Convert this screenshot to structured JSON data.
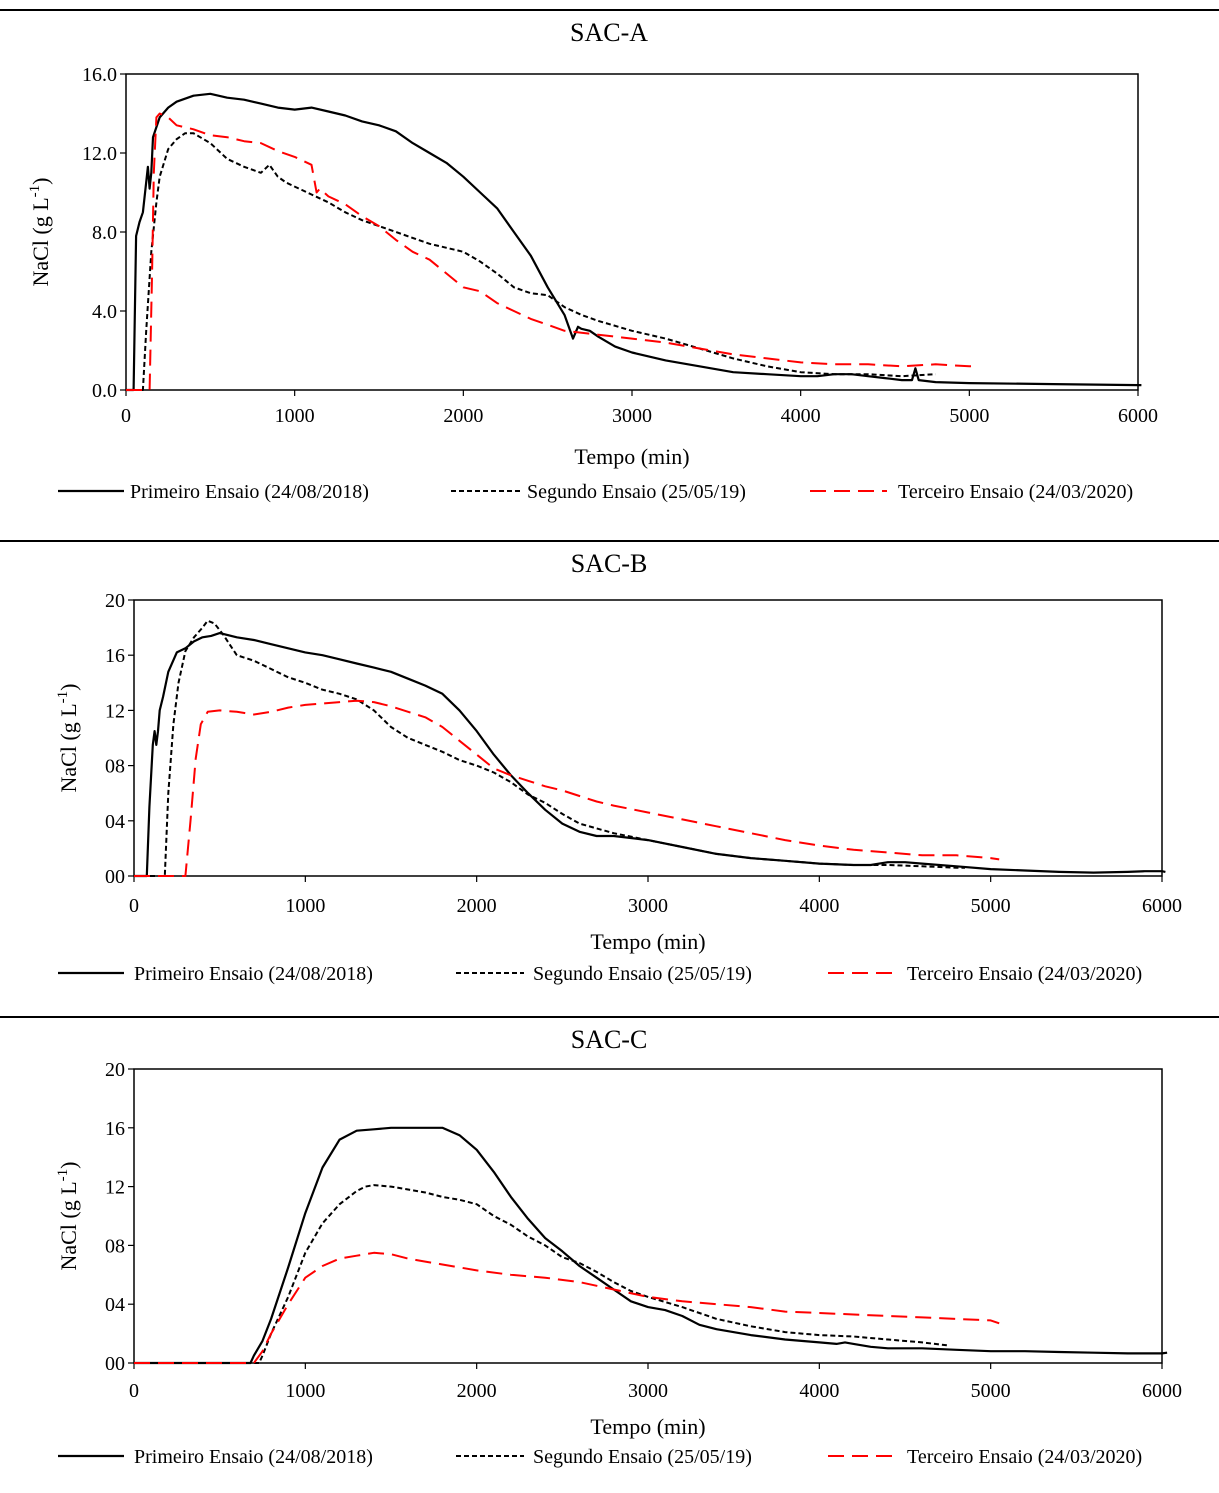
{
  "chart_data": [
    {
      "type": "line",
      "title": "SAC-A",
      "xlabel": "Tempo (min)",
      "ylabel": "NaCl (g L-1)",
      "ylabel_main": "NaCl (g L",
      "ylabel_sup": "-1",
      "ylabel_close": ")",
      "xlim": [
        0,
        6000
      ],
      "ylim": [
        0,
        16
      ],
      "xticks": [
        "0",
        "1000",
        "2000",
        "3000",
        "4000",
        "5000",
        "6000"
      ],
      "yticks": [
        "0.0",
        "4.0",
        "8.0",
        "12.0",
        "16.0"
      ],
      "grid": false,
      "legend_position": "bottom",
      "series": [
        {
          "name": "Primeiro Ensaio (24/08/2018)",
          "color": "#000000",
          "style": "solid",
          "x": [
            0,
            45,
            60,
            80,
            100,
            130,
            140,
            150,
            160,
            200,
            250,
            300,
            400,
            500,
            600,
            700,
            800,
            900,
            1000,
            1100,
            1200,
            1300,
            1400,
            1500,
            1600,
            1700,
            1800,
            1900,
            2000,
            2100,
            2200,
            2300,
            2400,
            2500,
            2600,
            2650,
            2680,
            2700,
            2750,
            2800,
            2900,
            3000,
            3200,
            3400,
            3600,
            3800,
            4000,
            4100,
            4200,
            4300,
            4400,
            4500,
            4600,
            4660,
            4680,
            4700,
            4800,
            5000,
            5500,
            6000,
            6020
          ],
          "y": [
            0,
            0,
            7.8,
            8.5,
            9,
            11.3,
            10.2,
            11,
            12.8,
            13.8,
            14.3,
            14.6,
            14.9,
            15,
            14.8,
            14.7,
            14.5,
            14.3,
            14.2,
            14.3,
            14.1,
            13.9,
            13.6,
            13.4,
            13.1,
            12.5,
            12,
            11.5,
            10.8,
            10,
            9.2,
            8,
            6.8,
            5.2,
            3.8,
            2.6,
            3.2,
            3.1,
            3.0,
            2.7,
            2.2,
            1.9,
            1.5,
            1.2,
            0.9,
            0.8,
            0.7,
            0.7,
            0.8,
            0.8,
            0.7,
            0.6,
            0.5,
            0.5,
            1.1,
            0.5,
            0.4,
            0.35,
            0.3,
            0.25,
            0.25
          ]
        },
        {
          "name": "Segundo Ensaio (25/05/19)",
          "color": "#000000",
          "style": "dash",
          "x": [
            0,
            100,
            120,
            150,
            180,
            200,
            250,
            300,
            350,
            400,
            500,
            600,
            700,
            800,
            850,
            900,
            950,
            1000,
            1100,
            1200,
            1300,
            1400,
            1500,
            1600,
            1700,
            1800,
            1900,
            2000,
            2100,
            2200,
            2300,
            2400,
            2500,
            2600,
            2700,
            2800,
            3000,
            3200,
            3400,
            3600,
            3800,
            4000,
            4200,
            4400,
            4600,
            4800
          ],
          "y": [
            0,
            0,
            3,
            7,
            9.5,
            10.8,
            12.2,
            12.7,
            13.0,
            13.0,
            12.5,
            11.7,
            11.3,
            11.0,
            11.4,
            10.8,
            10.5,
            10.3,
            9.9,
            9.5,
            9.0,
            8.6,
            8.3,
            8.0,
            7.7,
            7.4,
            7.2,
            7.0,
            6.5,
            5.9,
            5.2,
            4.9,
            4.8,
            4.2,
            3.8,
            3.5,
            3.0,
            2.6,
            2.1,
            1.6,
            1.2,
            0.9,
            0.8,
            0.8,
            0.7,
            0.8
          ]
        },
        {
          "name": "Terceiro Ensaio (24/03/2020)",
          "color": "#ff0000",
          "style": "longdash",
          "x": [
            0,
            140,
            155,
            165,
            180,
            200,
            250,
            300,
            400,
            500,
            600,
            700,
            800,
            900,
            1000,
            1100,
            1130,
            1150,
            1200,
            1300,
            1400,
            1500,
            1600,
            1700,
            1800,
            1900,
            2000,
            2100,
            2200,
            2300,
            2400,
            2500,
            2600,
            2700,
            2800,
            3000,
            3200,
            3400,
            3600,
            3800,
            4000,
            4200,
            4400,
            4600,
            4800,
            5000,
            5050
          ],
          "y": [
            0,
            0,
            6,
            11,
            13.8,
            14.0,
            13.8,
            13.4,
            13.2,
            12.9,
            12.8,
            12.6,
            12.5,
            12.1,
            11.8,
            11.4,
            10.0,
            10.2,
            9.8,
            9.4,
            8.8,
            8.3,
            7.6,
            7.0,
            6.6,
            5.9,
            5.2,
            5.0,
            4.4,
            4.0,
            3.6,
            3.3,
            3.0,
            2.9,
            2.8,
            2.6,
            2.4,
            2.1,
            1.8,
            1.6,
            1.4,
            1.3,
            1.3,
            1.2,
            1.3,
            1.2,
            1.2
          ]
        }
      ]
    },
    {
      "type": "line",
      "title": "SAC-B",
      "xlabel": "Tempo (min)",
      "ylabel": "NaCl (g L-1)",
      "ylabel_main": "NaCl (g L",
      "ylabel_sup": "-1",
      "ylabel_close": ")",
      "xlim": [
        0,
        6000
      ],
      "ylim": [
        0,
        20
      ],
      "xticks": [
        "0",
        "1000",
        "2000",
        "3000",
        "4000",
        "5000",
        "6000"
      ],
      "yticks": [
        "00",
        "04",
        "08",
        "12",
        "16",
        "20"
      ],
      "grid": false,
      "legend_position": "bottom",
      "series": [
        {
          "name": "Primeiro Ensaio (24/08/2018)",
          "color": "#000000",
          "style": "solid",
          "x": [
            0,
            75,
            90,
            110,
            120,
            130,
            140,
            150,
            170,
            200,
            250,
            300,
            350,
            400,
            450,
            500,
            600,
            700,
            800,
            900,
            1000,
            1100,
            1200,
            1300,
            1400,
            1500,
            1600,
            1700,
            1800,
            1900,
            2000,
            2100,
            2200,
            2300,
            2400,
            2500,
            2600,
            2700,
            2800,
            3000,
            3200,
            3400,
            3600,
            3800,
            4000,
            4200,
            4300,
            4400,
            4500,
            4600,
            4800,
            5000,
            5200,
            5400,
            5600,
            5800,
            5900,
            6000,
            6020
          ],
          "y": [
            0,
            0,
            5,
            9.5,
            10.5,
            9.5,
            10.5,
            12,
            13,
            14.8,
            16.2,
            16.5,
            17.0,
            17.3,
            17.4,
            17.6,
            17.3,
            17.1,
            16.8,
            16.5,
            16.2,
            16.0,
            15.7,
            15.4,
            15.1,
            14.8,
            14.3,
            13.8,
            13.2,
            12,
            10.5,
            8.8,
            7.3,
            6.0,
            4.8,
            3.8,
            3.2,
            2.9,
            2.9,
            2.6,
            2.1,
            1.6,
            1.3,
            1.1,
            0.9,
            0.8,
            0.8,
            1.0,
            1.0,
            0.9,
            0.7,
            0.5,
            0.4,
            0.3,
            0.25,
            0.3,
            0.35,
            0.35,
            0.3
          ]
        },
        {
          "name": "Segundo Ensaio (25/05/19)",
          "color": "#000000",
          "style": "dash",
          "x": [
            0,
            180,
            200,
            230,
            260,
            300,
            350,
            400,
            430,
            470,
            520,
            600,
            700,
            800,
            900,
            1000,
            1100,
            1200,
            1300,
            1400,
            1500,
            1600,
            1700,
            1800,
            1900,
            2000,
            2100,
            2200,
            2300,
            2400,
            2500,
            2600,
            2800,
            3000,
            3200,
            3400,
            3600,
            3800,
            4000,
            4200,
            4400,
            4600,
            4800,
            4850
          ],
          "y": [
            0,
            0,
            6,
            11,
            14,
            16.3,
            17.3,
            18.0,
            18.5,
            18.3,
            17.5,
            16.0,
            15.6,
            15.0,
            14.4,
            14.0,
            13.5,
            13.2,
            12.8,
            12.0,
            10.8,
            10.0,
            9.5,
            9.0,
            8.4,
            8.0,
            7.5,
            6.8,
            5.9,
            5.3,
            4.5,
            3.8,
            3.1,
            2.6,
            2.1,
            1.6,
            1.3,
            1.1,
            0.9,
            0.8,
            0.8,
            0.7,
            0.6,
            0.6
          ]
        },
        {
          "name": "Terceiro Ensaio (24/03/2020)",
          "color": "#ff0000",
          "style": "longdash",
          "x": [
            0,
            300,
            330,
            360,
            390,
            430,
            500,
            600,
            700,
            800,
            900,
            1000,
            1100,
            1200,
            1300,
            1400,
            1500,
            1600,
            1700,
            1800,
            1900,
            2000,
            2100,
            2200,
            2300,
            2400,
            2500,
            2600,
            2700,
            2800,
            3000,
            3200,
            3400,
            3600,
            3800,
            4000,
            4200,
            4400,
            4600,
            4800,
            5000,
            5050
          ],
          "y": [
            0,
            0,
            4,
            8.5,
            11,
            11.9,
            12.0,
            11.9,
            11.7,
            11.9,
            12.2,
            12.4,
            12.5,
            12.6,
            12.7,
            12.6,
            12.3,
            11.9,
            11.5,
            10.8,
            9.8,
            8.8,
            7.8,
            7.3,
            6.9,
            6.5,
            6.2,
            5.8,
            5.4,
            5.1,
            4.6,
            4.1,
            3.6,
            3.1,
            2.6,
            2.2,
            1.9,
            1.7,
            1.5,
            1.5,
            1.3,
            1.2
          ]
        }
      ]
    },
    {
      "type": "line",
      "title": "SAC-C",
      "xlabel": "Tempo (min)",
      "ylabel": "NaCl (g L-1)",
      "ylabel_main": "NaCl (g L",
      "ylabel_sup": "-1",
      "ylabel_close": ")",
      "xlim": [
        0,
        6000
      ],
      "ylim": [
        0,
        20
      ],
      "xticks": [
        "0",
        "1000",
        "2000",
        "3000",
        "4000",
        "5000",
        "6000"
      ],
      "yticks": [
        "00",
        "04",
        "08",
        "12",
        "16",
        "20"
      ],
      "grid": false,
      "legend_position": "bottom",
      "series": [
        {
          "name": "Primeiro Ensaio (24/08/2018)",
          "color": "#000000",
          "style": "solid",
          "x": [
            0,
            680,
            700,
            750,
            800,
            900,
            1000,
            1100,
            1200,
            1300,
            1400,
            1500,
            1600,
            1700,
            1800,
            1900,
            2000,
            2100,
            2200,
            2300,
            2400,
            2500,
            2600,
            2700,
            2800,
            2900,
            3000,
            3100,
            3200,
            3300,
            3400,
            3600,
            3800,
            4000,
            4100,
            4150,
            4200,
            4300,
            4400,
            4600,
            4800,
            5000,
            5200,
            5400,
            5600,
            5800,
            6000,
            6030
          ],
          "y": [
            0,
            0,
            0.5,
            1.5,
            3.0,
            6.5,
            10.2,
            13.3,
            15.2,
            15.8,
            15.9,
            16.0,
            16.0,
            16.0,
            16.0,
            15.5,
            14.5,
            13.0,
            11.3,
            9.8,
            8.5,
            7.6,
            6.6,
            5.8,
            5.0,
            4.2,
            3.8,
            3.6,
            3.2,
            2.6,
            2.3,
            1.9,
            1.6,
            1.4,
            1.3,
            1.4,
            1.3,
            1.1,
            1.0,
            1.0,
            0.9,
            0.8,
            0.8,
            0.75,
            0.7,
            0.65,
            0.65,
            0.7
          ]
        },
        {
          "name": "Segundo Ensaio (25/05/19)",
          "color": "#000000",
          "style": "dash",
          "x": [
            0,
            730,
            750,
            800,
            900,
            1000,
            1100,
            1200,
            1300,
            1350,
            1400,
            1500,
            1600,
            1700,
            1800,
            1900,
            2000,
            2100,
            2200,
            2300,
            2400,
            2500,
            2600,
            2700,
            2800,
            2900,
            3000,
            3200,
            3400,
            3600,
            3800,
            4000,
            4200,
            4400,
            4600,
            4750
          ],
          "y": [
            0,
            0,
            0.5,
            2,
            4.5,
            7.5,
            9.5,
            10.8,
            11.7,
            12.0,
            12.1,
            12.0,
            11.8,
            11.6,
            11.3,
            11.1,
            10.8,
            10.0,
            9.4,
            8.6,
            8.0,
            7.2,
            6.8,
            6.2,
            5.5,
            4.9,
            4.5,
            3.8,
            3.0,
            2.5,
            2.1,
            1.9,
            1.8,
            1.6,
            1.4,
            1.2
          ]
        },
        {
          "name": "Terceiro Ensaio (24/03/2020)",
          "color": "#ff0000",
          "style": "longdash",
          "x": [
            0,
            700,
            750,
            800,
            900,
            1000,
            1100,
            1200,
            1300,
            1400,
            1500,
            1600,
            1700,
            1800,
            1900,
            2000,
            2200,
            2400,
            2600,
            2800,
            3000,
            3200,
            3400,
            3600,
            3800,
            4000,
            4200,
            4400,
            4600,
            4800,
            5000,
            5050
          ],
          "y": [
            0,
            0,
            0.8,
            2.0,
            4.0,
            5.8,
            6.6,
            7.1,
            7.3,
            7.5,
            7.4,
            7.1,
            6.9,
            6.7,
            6.5,
            6.3,
            6.0,
            5.8,
            5.5,
            5.0,
            4.5,
            4.2,
            4.0,
            3.8,
            3.5,
            3.4,
            3.3,
            3.2,
            3.1,
            3.0,
            2.9,
            2.7
          ]
        }
      ]
    }
  ]
}
